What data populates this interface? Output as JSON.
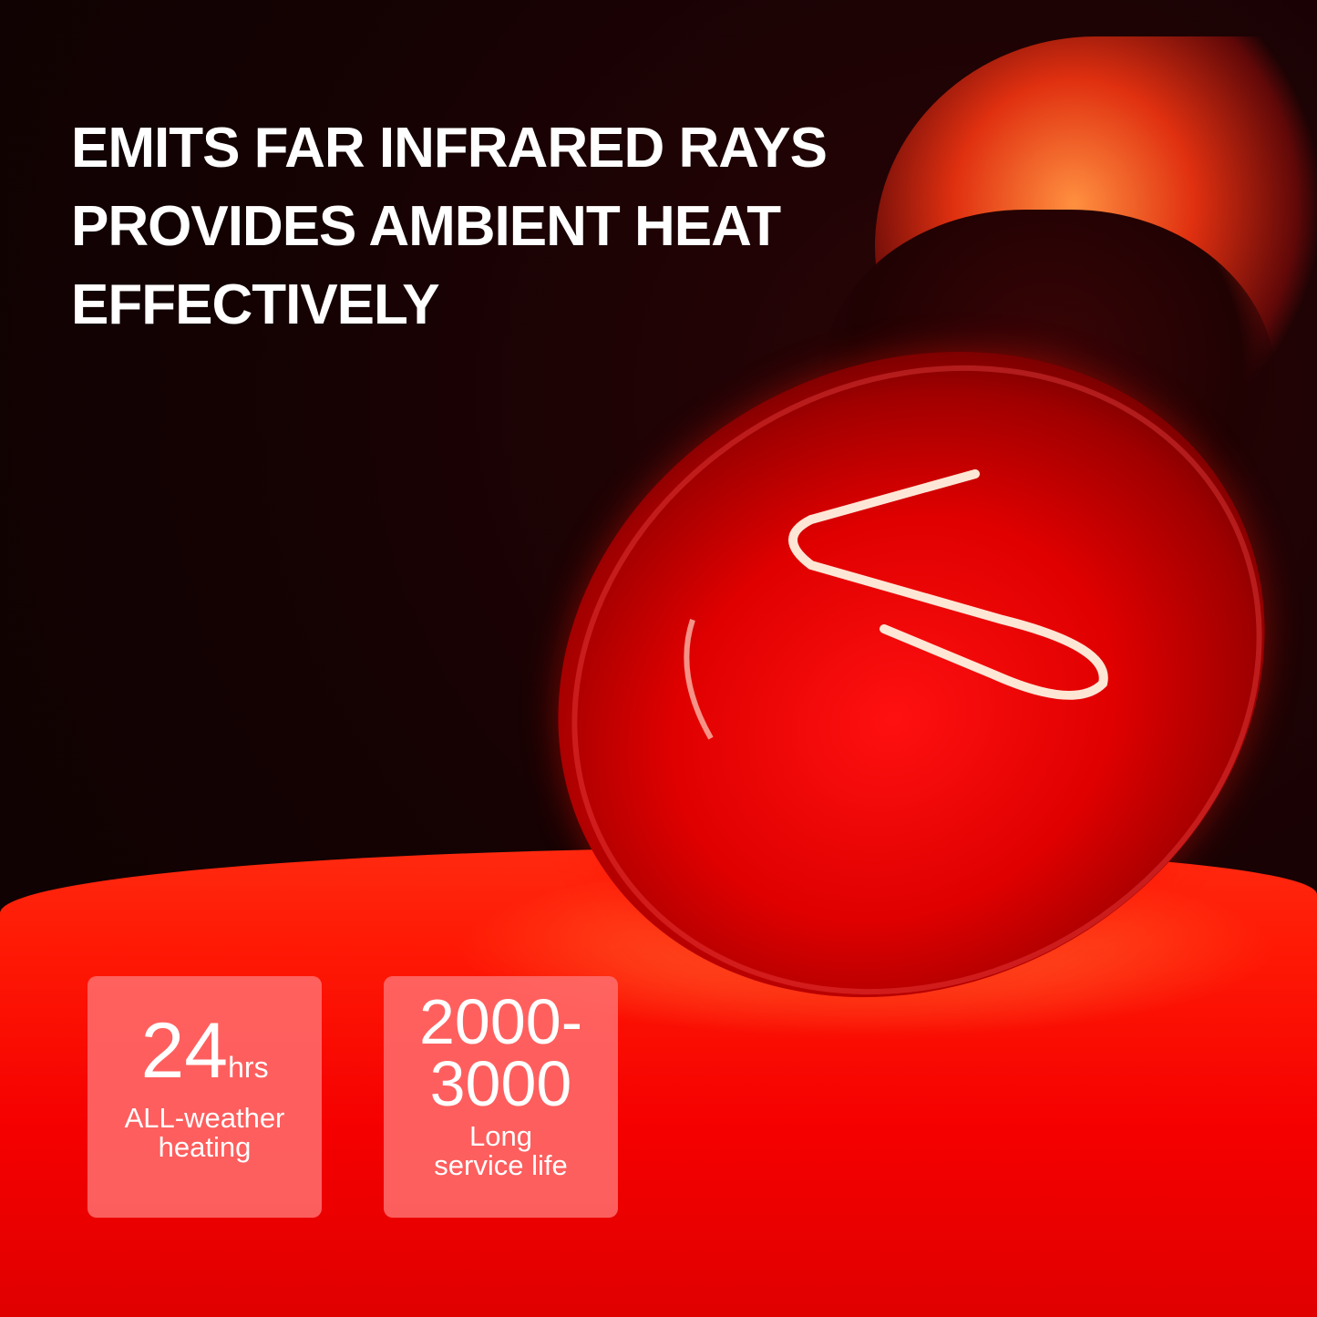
{
  "headline": {
    "lines": [
      "EMITS FAR INFRARED RAYS",
      "PROVIDES AMBIENT HEAT",
      "EFFECTIVELY"
    ]
  },
  "badges": [
    {
      "value": "24",
      "unit": "hrs",
      "caption_lines": [
        "ALL-weather",
        "heating"
      ]
    },
    {
      "value_lines": [
        "2000-",
        "3000"
      ],
      "caption_lines": [
        "Long",
        "service life"
      ]
    }
  ],
  "colors": {
    "glow": "#ff0000",
    "badge": "#ff6e6e",
    "background": "#120203"
  }
}
